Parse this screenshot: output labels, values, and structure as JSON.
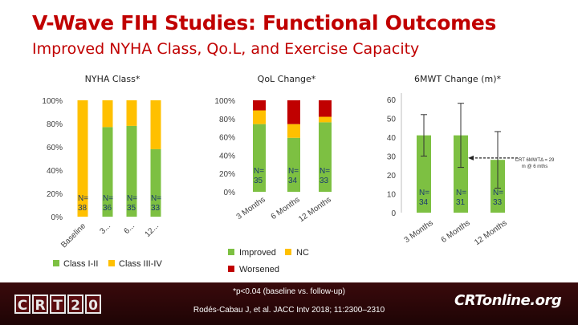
{
  "slide": {
    "title": "V-Wave FIH Studies: Functional Outcomes",
    "subtitle": "Improved NYHA Class, Qo.L, and Exercise Capacity",
    "footnote": "*p<0.04 (baseline vs. follow-up)",
    "citation": "Rodés-Cabau J, et al. JACC Intv 2018; 11:2300–2310",
    "logo_left": [
      "C",
      "R",
      "T",
      "2",
      "0"
    ],
    "logo_right": "CRTonline.org"
  },
  "colors": {
    "green": "#7dc042",
    "yellow": "#ffc000",
    "red": "#c00000",
    "title": "#c00000",
    "footer": "#2b0608",
    "nlabel": "#1a3a6e"
  },
  "chart_data": [
    {
      "type": "bar",
      "stacked": true,
      "title": "NYHA Class*",
      "categories": [
        "Baseline",
        "3...",
        "6...",
        "12..."
      ],
      "series": [
        {
          "name": "Class I-II",
          "values": [
            0,
            77,
            78,
            58
          ]
        },
        {
          "name": "Class III-IV",
          "values": [
            100,
            23,
            22,
            42
          ]
        }
      ],
      "n_labels": [
        "N=\n38",
        "N=\n36",
        "N=\n35",
        "N=\n33"
      ],
      "yticks": [
        "0%",
        "20%",
        "40%",
        "60%",
        "80%",
        "100%"
      ],
      "ylim": [
        0,
        100
      ],
      "legend": "bottom"
    },
    {
      "type": "bar",
      "stacked": true,
      "title": "QoL Change*",
      "categories": [
        "3 Months",
        "6 Months",
        "12 Months"
      ],
      "series": [
        {
          "name": "Improved",
          "values": [
            74,
            59,
            76
          ]
        },
        {
          "name": "NC",
          "values": [
            15,
            15,
            6
          ]
        },
        {
          "name": "Worsened",
          "values": [
            11,
            26,
            18
          ]
        }
      ],
      "n_labels": [
        "N=\n35",
        "N=\n34",
        "N=\n33"
      ],
      "yticks": [
        "0%",
        "20%",
        "40%",
        "60%",
        "80%",
        "100%"
      ],
      "ylim": [
        0,
        100
      ],
      "legend": "bottom"
    },
    {
      "type": "bar",
      "title": "6MWT Change (m)*",
      "categories": [
        "3 Months",
        "6 Months",
        "12 Months"
      ],
      "values": [
        41,
        41,
        28
      ],
      "error_upper": [
        52,
        58,
        43
      ],
      "error_lower": [
        30,
        24,
        13
      ],
      "n_labels": [
        "N=\n34",
        "N=\n31",
        "N=\n33"
      ],
      "yticks": [
        "0",
        "10",
        "20",
        "30",
        "40",
        "50",
        "60"
      ],
      "ylim": [
        0,
        60
      ],
      "annotation": "CRT 6MWTΔ = 29\nm @ 6 mths",
      "annotation_value": 29
    }
  ]
}
